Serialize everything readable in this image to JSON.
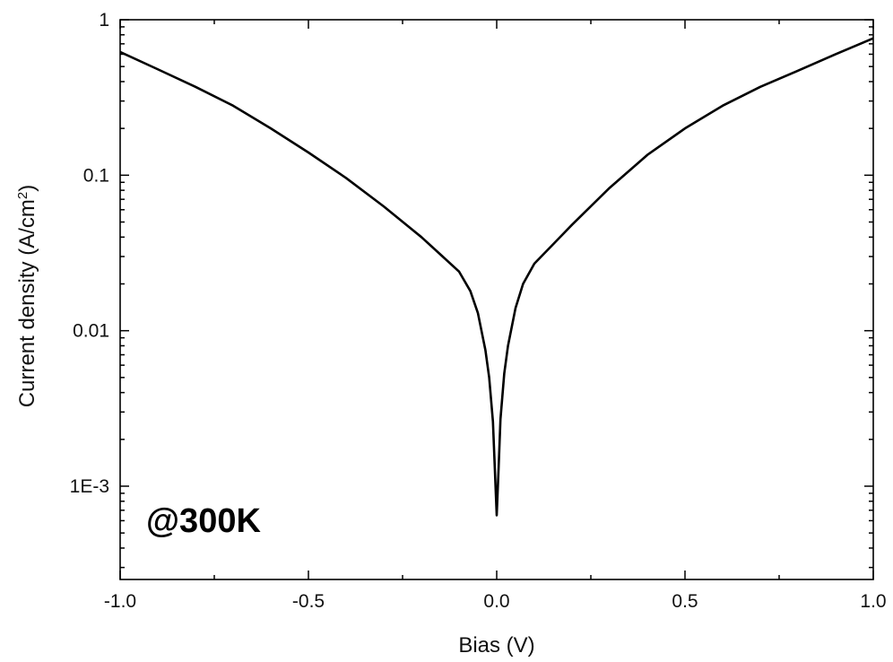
{
  "chart_data": {
    "type": "line",
    "title": "",
    "xlabel": "Bias (V)",
    "ylabel": "Current density (A/cm",
    "ylabel_superscript": "2",
    "ylabel_suffix": ")",
    "annotation": "@300K",
    "xlim": [
      -1.0,
      1.0
    ],
    "ylim_log10": [
      -3.6,
      0.0
    ],
    "yscale": "log",
    "grid": false,
    "xticks": [
      {
        "value": -1.0,
        "label": "-1.0"
      },
      {
        "value": -0.5,
        "label": "-0.5"
      },
      {
        "value": 0.0,
        "label": "0.0"
      },
      {
        "value": 0.5,
        "label": "0.5"
      },
      {
        "value": 1.0,
        "label": "1.0"
      }
    ],
    "yticks": [
      {
        "value": 1,
        "label": "1"
      },
      {
        "value": 0.1,
        "label": "0.1"
      },
      {
        "value": 0.01,
        "label": "0.01"
      },
      {
        "value": 0.001,
        "label": "1E-3"
      }
    ],
    "series": [
      {
        "color": "#000000",
        "points": [
          [
            -1.0,
            0.62
          ],
          [
            -0.9,
            0.48
          ],
          [
            -0.8,
            0.37
          ],
          [
            -0.7,
            0.28
          ],
          [
            -0.6,
            0.2
          ],
          [
            -0.5,
            0.14
          ],
          [
            -0.4,
            0.096
          ],
          [
            -0.3,
            0.063
          ],
          [
            -0.2,
            0.04
          ],
          [
            -0.15,
            0.031
          ],
          [
            -0.1,
            0.024
          ],
          [
            -0.07,
            0.018
          ],
          [
            -0.05,
            0.013
          ],
          [
            -0.03,
            0.0075
          ],
          [
            -0.02,
            0.005
          ],
          [
            -0.01,
            0.0026
          ],
          [
            -0.005,
            0.0013
          ],
          [
            0.0,
            0.00065
          ],
          [
            0.005,
            0.0013
          ],
          [
            0.01,
            0.0027
          ],
          [
            0.02,
            0.0053
          ],
          [
            0.03,
            0.008
          ],
          [
            0.05,
            0.014
          ],
          [
            0.07,
            0.02
          ],
          [
            0.1,
            0.027
          ],
          [
            0.15,
            0.036
          ],
          [
            0.2,
            0.048
          ],
          [
            0.3,
            0.083
          ],
          [
            0.4,
            0.135
          ],
          [
            0.5,
            0.2
          ],
          [
            0.6,
            0.28
          ],
          [
            0.7,
            0.37
          ],
          [
            0.8,
            0.47
          ],
          [
            0.9,
            0.6
          ],
          [
            1.0,
            0.76
          ]
        ]
      }
    ]
  }
}
